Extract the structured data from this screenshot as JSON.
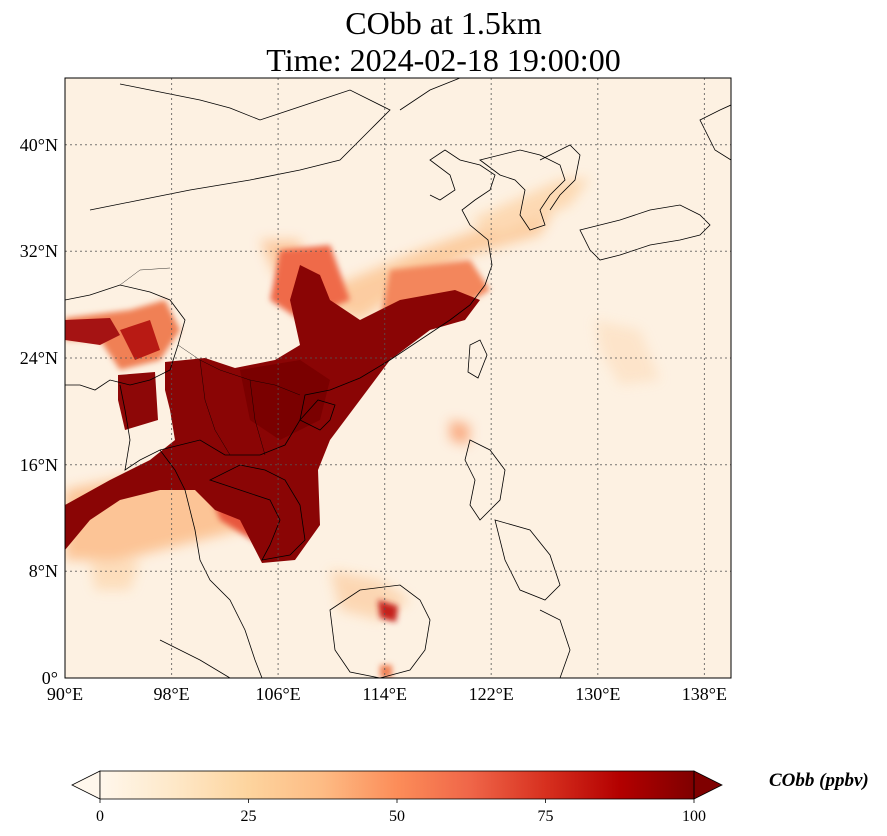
{
  "title": {
    "line1": "CObb at 1.5km",
    "line2": "Time: 2024-02-18 19:00:00"
  },
  "map": {
    "extent_lon": [
      90,
      140
    ],
    "extent_lat": [
      0,
      45
    ],
    "lon_ticks": [
      "90°E",
      "98°E",
      "106°E",
      "114°E",
      "122°E",
      "130°E",
      "138°E"
    ],
    "lat_ticks": [
      "0°",
      "8°N",
      "16°N",
      "24°N",
      "32°N",
      "40°N"
    ],
    "gridlines": true,
    "field": "CObb"
  },
  "colorbar": {
    "label": "CObb (ppbv)",
    "ticks": [
      "0",
      "25",
      "50",
      "75",
      "100"
    ],
    "range": [
      0,
      100
    ],
    "extend": "both",
    "colormap": "OrRd",
    "colors": [
      "#fff7ec",
      "#fee8c8",
      "#fdd49e",
      "#fdbb84",
      "#fc8d59",
      "#ef6548",
      "#d7301f",
      "#b30000",
      "#7f0000"
    ]
  }
}
